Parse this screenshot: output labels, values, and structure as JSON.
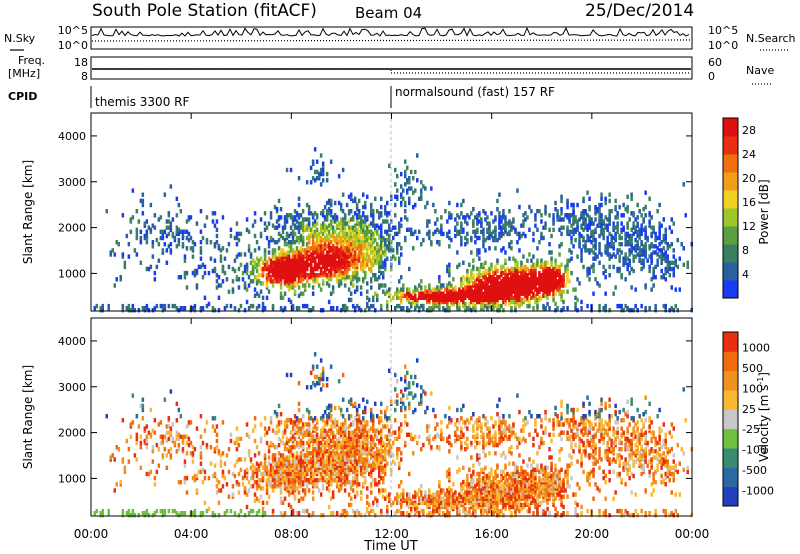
{
  "header": {
    "title": "South Pole Station (fitACF)",
    "beam": "Beam 04",
    "date": "25/Dec/2014"
  },
  "top_panels": {
    "nsky_label": "N.Sky",
    "nsearch_label": "N.Search",
    "freq_label_line1": "Freq.",
    "freq_label_line2": "[MHz]",
    "nave_label": "Nave",
    "cpid_label": "CPID",
    "noise_ticks_left": [
      "10^5",
      "10^0"
    ],
    "noise_ticks_right": [
      "10^5",
      "10^0"
    ],
    "freq_ticks_left": [
      "18",
      "8"
    ],
    "nave_ticks_right": [
      "60",
      "0"
    ],
    "cpid_segments": [
      {
        "start_hour": 0,
        "end_hour": 12,
        "label": "themis 3300 RF"
      },
      {
        "start_hour": 12,
        "end_hour": 24,
        "label": "normalsound (fast) 157 RF"
      }
    ]
  },
  "chart_data": [
    {
      "type": "heatmap",
      "quantity": "Power",
      "ylabel": "Slant Range [km]",
      "xlabel": "Time UT",
      "xlim": [
        0,
        24
      ],
      "ylim": [
        180,
        4500
      ],
      "yticks": [
        1000,
        2000,
        3000,
        4000
      ],
      "colorbar": {
        "label": "Power [dB]",
        "ticks": [
          "4",
          "8",
          "12",
          "16",
          "20",
          "24",
          "28"
        ],
        "colors": [
          "#1a3cf0",
          "#2a5fa0",
          "#3a8060",
          "#5aa040",
          "#9cc82a",
          "#f0d020",
          "#f0a018",
          "#f07010",
          "#e83010",
          "#e01010"
        ]
      }
    },
    {
      "type": "heatmap",
      "quantity": "Velocity",
      "ylabel": "Slant Range [km]",
      "xlabel": "Time UT",
      "xlim": [
        0,
        24
      ],
      "ylim": [
        180,
        4500
      ],
      "yticks": [
        1000,
        2000,
        3000,
        4000
      ],
      "xticks": [
        "00:00",
        "04:00",
        "08:00",
        "12:00",
        "16:00",
        "20:00",
        "00:00"
      ],
      "colorbar": {
        "label_main": "Velocity",
        "label_unit": "[m s",
        "label_exp": "-1",
        "label_close": "]",
        "ticks": [
          "1000",
          "500",
          "100",
          "25",
          "-25",
          "-100",
          "-500",
          "-1000"
        ],
        "colors": [
          "#2040c0",
          "#2a6aa0",
          "#3a8c70",
          "#70c040",
          "#c8c8c8",
          "#f8b830",
          "#f09020",
          "#f06a10",
          "#e83010"
        ]
      }
    }
  ]
}
